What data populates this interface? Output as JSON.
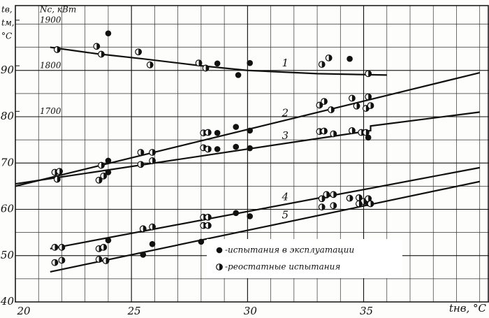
{
  "chart_data": {
    "type": "scatter-line",
    "y_label_lines": [
      "tв,",
      "tм,",
      "°C"
    ],
    "y2_label": "Nc, кВт",
    "x_label": "tнв, °C",
    "xlim": [
      20,
      40.4
    ],
    "xticks": [
      20,
      25,
      30,
      35
    ],
    "ylim": [
      40,
      104
    ],
    "yticks": [
      40,
      50,
      60,
      70,
      80,
      90
    ],
    "y2lim": [
      1282,
      1932
    ],
    "y2ticks": [
      1700,
      1800,
      1900
    ],
    "grid": true,
    "minor_grid": true,
    "legend": "lower-right",
    "color": "#111111",
    "lines": [
      {
        "name": "1",
        "x": [
          21.5,
          23.5,
          25.5,
          28,
          30,
          33,
          36
        ],
        "values": [
          95,
          93.6,
          92.5,
          91,
          90,
          89.3,
          89
        ]
      },
      {
        "name": "2",
        "x": [
          20,
          40
        ],
        "values": [
          65,
          89.5
        ]
      },
      {
        "name": "3",
        "x": [
          20,
          35.3,
          35.3,
          40
        ],
        "values": [
          65.5,
          77,
          78,
          81
        ]
      },
      {
        "name": "4",
        "x": [
          21.5,
          40
        ],
        "values": [
          51.5,
          69
        ]
      },
      {
        "name": "5",
        "x": [
          21.5,
          40
        ],
        "values": [
          46.5,
          66
        ]
      }
    ],
    "series": [
      {
        "name": "-испытания в эксплуатации",
        "marker": "filled",
        "x": [
          24,
          28.7,
          29.6,
          30.1,
          34.4,
          24,
          24,
          28.7,
          29.5,
          30.1,
          28.7,
          29.5,
          30.1,
          35.2,
          24,
          28,
          29.5,
          30.1,
          25.5,
          25.9,
          33.4,
          35.2
        ],
        "values": [
          98,
          91.5,
          89,
          91.6,
          92.5,
          70.5,
          68,
          76.5,
          77.8,
          77,
          73,
          73.5,
          73.2,
          75.5,
          53.3,
          53,
          59.2,
          58.5,
          50.2,
          52.5,
          63,
          61.3
        ]
      },
      {
        "name": "-реостатные испытания",
        "marker": "half",
        "x": [
          21.8,
          23.5,
          23.7,
          25.3,
          25.8,
          27.9,
          28.2,
          33.2,
          33.5,
          35.2,
          21.7,
          21.9,
          21.8,
          23.7,
          23.6,
          23.8,
          25.4,
          25.9,
          25.4,
          25.9,
          28.1,
          28.3,
          28.1,
          28.3,
          33.1,
          33.3,
          33.6,
          34.5,
          34.7,
          35.2,
          35.1,
          35.3,
          33.1,
          33.3,
          33.7,
          34.5,
          34.9,
          35.1,
          21.7,
          22,
          21.7,
          22,
          23.6,
          23.8,
          23.6,
          23.9,
          25.5,
          25.9,
          28.1,
          28.3,
          28.1,
          28.3,
          33.2,
          33.4,
          33.7,
          34.4,
          34.8,
          35,
          35.2,
          33.2,
          33.7,
          34.8,
          35.3
        ],
        "values": [
          94.5,
          95.2,
          93.5,
          94,
          91.2,
          91.6,
          90.5,
          91.3,
          92.7,
          89.3,
          68,
          68.2,
          66.5,
          69.5,
          66.3,
          67.2,
          72.3,
          72.3,
          69.7,
          70.5,
          76.5,
          76.6,
          73.3,
          73,
          82.5,
          83.3,
          81.5,
          84,
          82.3,
          84.3,
          81.8,
          82.4,
          76.8,
          76.9,
          76.3,
          77,
          76.6,
          76.6,
          51.8,
          51.8,
          48.5,
          49,
          51.5,
          51.8,
          49.2,
          48.9,
          55.8,
          56.2,
          58.3,
          58.3,
          56.5,
          56.5,
          62.3,
          63.2,
          63.2,
          62.4,
          62.5,
          61.7,
          62.3,
          60.5,
          60.8,
          61.2,
          61.2
        ]
      }
    ]
  }
}
